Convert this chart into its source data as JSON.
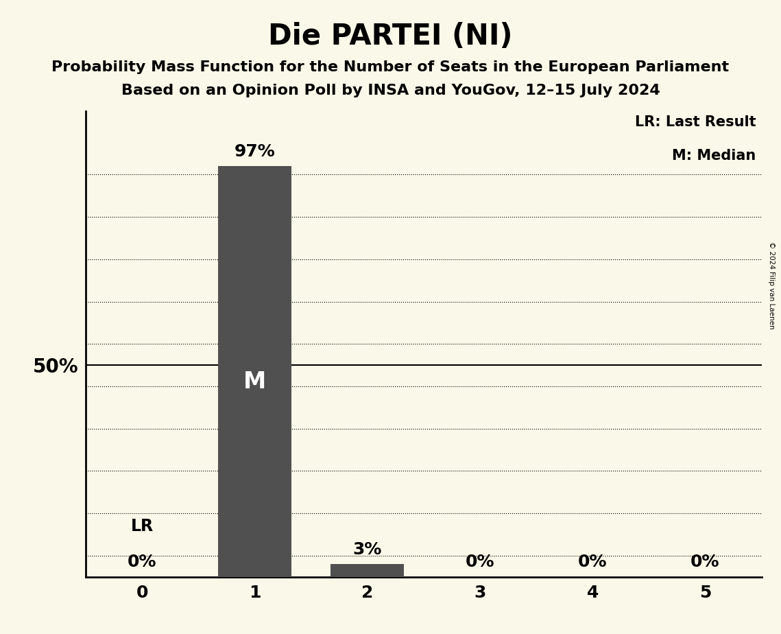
{
  "title": "Die PARTEI (NI)",
  "subtitle1": "Probability Mass Function for the Number of Seats in the European Parliament",
  "subtitle2": "Based on an Opinion Poll by INSA and YouGov, 12–15 July 2024",
  "copyright": "© 2024 Filip van Laenen",
  "categories": [
    0,
    1,
    2,
    3,
    4,
    5
  ],
  "values": [
    0,
    97,
    3,
    0,
    0,
    0
  ],
  "bar_color": "#505050",
  "background_color": "#FAF8E8",
  "ylabel_text": "50%",
  "ylabel_value": 50,
  "median_bar": 1,
  "median_label": "M",
  "lr_bar": 0,
  "lr_label": "LR",
  "legend_lr": "LR: Last Result",
  "legend_m": "M: Median",
  "ylim": [
    0,
    110
  ],
  "grid_lines": [
    5,
    15,
    25,
    35,
    45,
    55,
    65,
    75,
    85,
    95
  ],
  "title_fontsize": 30,
  "subtitle_fontsize": 16,
  "bar_label_fontsize": 18,
  "axis_tick_fontsize": 18,
  "ylabel_fontsize": 20,
  "legend_fontsize": 15,
  "median_label_fontsize": 24,
  "lr_label_fontsize": 17
}
